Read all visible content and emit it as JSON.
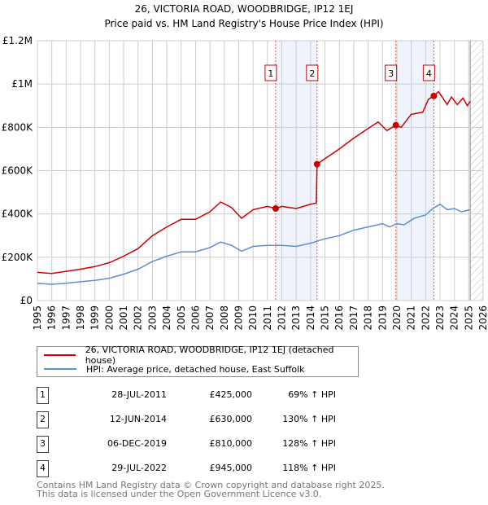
{
  "chart_data": {
    "type": "line",
    "title": "26, VICTORIA ROAD, WOODBRIDGE, IP12 1EJ",
    "subtitle": "Price paid vs. HM Land Registry's House Price Index (HPI)",
    "xlim": [
      1995,
      2026
    ],
    "ylim": [
      0,
      1200000
    ],
    "x_ticks": [
      "1995",
      "1996",
      "1997",
      "1998",
      "1999",
      "2000",
      "2001",
      "2002",
      "2003",
      "2004",
      "2005",
      "2006",
      "2007",
      "2008",
      "2009",
      "2010",
      "2011",
      "2012",
      "2013",
      "2014",
      "2015",
      "2016",
      "2017",
      "2018",
      "2019",
      "2020",
      "2021",
      "2022",
      "2023",
      "2024",
      "2025",
      "2026"
    ],
    "y_ticks": [
      {
        "v": 0,
        "label": "£0"
      },
      {
        "v": 200000,
        "label": "£200K"
      },
      {
        "v": 400000,
        "label": "£400K"
      },
      {
        "v": 600000,
        "label": "£600K"
      },
      {
        "v": 800000,
        "label": "£800K"
      },
      {
        "v": 1000000,
        "label": "£1M"
      },
      {
        "v": 1200000,
        "label": "£1.2M"
      }
    ],
    "grid": true,
    "forecast_hatch_from": 2025.1,
    "series": [
      {
        "name": "26, VICTORIA ROAD, WOODBRIDGE, IP12 1EJ (detached house)",
        "color": "#cc0000",
        "x": [
          1995,
          1996,
          1997,
          1998,
          1999,
          2000,
          2001,
          2002,
          2003,
          2004,
          2005,
          2006,
          2007,
          2007.75,
          2008.5,
          2009.2,
          2010,
          2011,
          2011.57,
          2012,
          2013,
          2014,
          2014.4,
          2014.45,
          2015,
          2016,
          2017,
          2018,
          2018.7,
          2019.3,
          2019.93,
          2020.3,
          2021,
          2021.8,
          2022.2,
          2022.57,
          2022.9,
          2023.5,
          2023.8,
          2024.2,
          2024.6,
          2024.9,
          2025.1
        ],
        "y": [
          130000,
          125000,
          135000,
          145000,
          157000,
          175000,
          205000,
          240000,
          300000,
          340000,
          375000,
          375000,
          410000,
          455000,
          430000,
          380000,
          420000,
          435000,
          425000,
          435000,
          425000,
          445000,
          450000,
          630000,
          655000,
          700000,
          750000,
          795000,
          825000,
          785000,
          810000,
          800000,
          860000,
          870000,
          930000,
          945000,
          965000,
          905000,
          940000,
          905000,
          935000,
          900000,
          920000
        ]
      },
      {
        "name": "HPI: Average price, detached house, East Suffolk",
        "color": "#5b8fd0",
        "x": [
          1995,
          1996,
          1997,
          1998,
          1999,
          2000,
          2001,
          2002,
          2003,
          2004,
          2005,
          2006,
          2007,
          2007.75,
          2008.5,
          2009.2,
          2010,
          2011,
          2012,
          2013,
          2014,
          2015,
          2016,
          2017,
          2018,
          2019,
          2019.5,
          2020,
          2020.5,
          2021.2,
          2022,
          2022.5,
          2023,
          2023.5,
          2024,
          2024.5,
          2025.1
        ],
        "y": [
          80000,
          75000,
          80000,
          87000,
          93000,
          103000,
          122000,
          145000,
          180000,
          205000,
          225000,
          225000,
          245000,
          270000,
          255000,
          228000,
          250000,
          255000,
          255000,
          250000,
          265000,
          285000,
          300000,
          325000,
          340000,
          355000,
          340000,
          355000,
          350000,
          380000,
          395000,
          425000,
          445000,
          420000,
          425000,
          410000,
          420000
        ]
      }
    ],
    "sales": [
      {
        "id": "1",
        "x": 2011.57,
        "y": 425000
      },
      {
        "id": "2",
        "x": 2014.45,
        "y": 630000
      },
      {
        "id": "3",
        "x": 2019.93,
        "y": 810000
      },
      {
        "id": "4",
        "x": 2022.57,
        "y": 945000
      }
    ],
    "shaded_ranges": [
      [
        2011.57,
        2014.45
      ],
      [
        2019.93,
        2022.57
      ]
    ]
  },
  "legend": {
    "red": "26, VICTORIA ROAD, WOODBRIDGE, IP12 1EJ (detached house)",
    "blue": "HPI: Average price, detached house, East Suffolk"
  },
  "table": [
    {
      "num": "1",
      "date": "28-JUL-2011",
      "price": "£425,000",
      "hpi": "69% ↑ HPI"
    },
    {
      "num": "2",
      "date": "12-JUN-2014",
      "price": "£630,000",
      "hpi": "130% ↑ HPI"
    },
    {
      "num": "3",
      "date": "06-DEC-2019",
      "price": "£810,000",
      "hpi": "128% ↑ HPI"
    },
    {
      "num": "4",
      "date": "29-JUL-2022",
      "price": "£945,000",
      "hpi": "118% ↑ HPI"
    }
  ],
  "footer": {
    "line1": "Contains HM Land Registry data © Crown copyright and database right 2025.",
    "line2": "This data is licensed under the Open Government Licence v3.0."
  }
}
